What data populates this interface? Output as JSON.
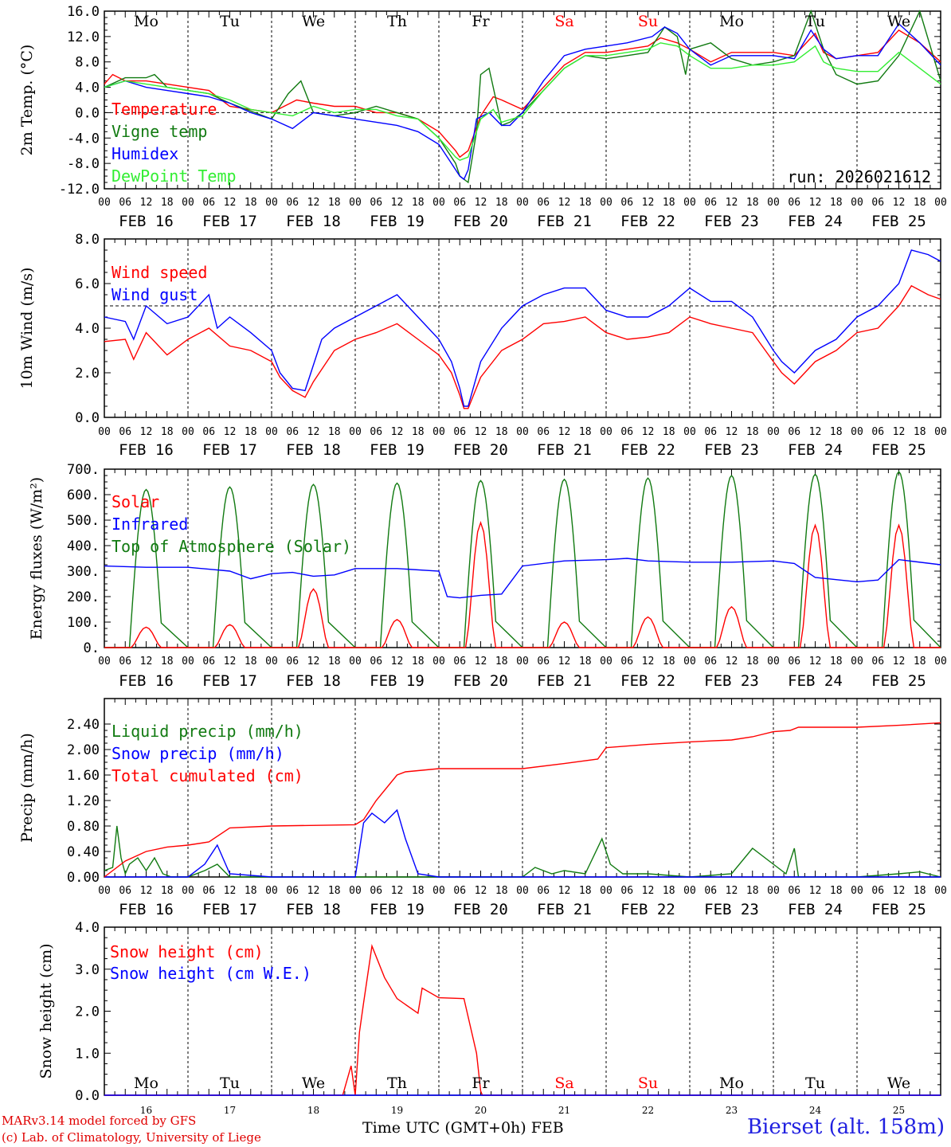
{
  "colors": {
    "red": "#ff0000",
    "darkgreen": "#117a11",
    "blue": "#0000ff",
    "lightgreen": "#33ee33",
    "axis": "#000000"
  },
  "days": [
    "Mo",
    "Tu",
    "We",
    "Th",
    "Fr",
    "Sa",
    "Su",
    "Mo",
    "Tu",
    "We"
  ],
  "weekend_days": [
    5,
    6
  ],
  "dates": [
    "FEB 16",
    "FEB 17",
    "FEB 18",
    "FEB 19",
    "FEB 20",
    "FEB 21",
    "FEB 22",
    "FEB 23",
    "FEB 24",
    "FEB 25"
  ],
  "day_numbers": [
    "16",
    "17",
    "18",
    "19",
    "20",
    "21",
    "22",
    "23",
    "24",
    "25"
  ],
  "hour_labels": [
    "00",
    "06",
    "12",
    "18"
  ],
  "end_hour_label": "00",
  "footer": {
    "model": "MARv3.14 model forced by GFS",
    "credit": "(c) Lab. of Climatology, University of Liege",
    "time_axis": "Time UTC (GMT+0h) FEB",
    "station": "Bierset (alt. 158m)"
  },
  "chart_data": [
    {
      "type": "line",
      "id": "temp",
      "ylabel": "2m Temp. (°C)",
      "ylim": [
        -12,
        16
      ],
      "yticks": [
        "16.0",
        "12.0",
        "8.0",
        "4.0",
        "0.0",
        "-4.0",
        "-8.0",
        "-12.0"
      ],
      "ytick_values": [
        16,
        12,
        8,
        4,
        0,
        -4,
        -8,
        -12
      ],
      "ref_line": 0,
      "xrange_days": [
        0,
        10
      ],
      "annotation": "run: 2026021612",
      "series": [
        {
          "name": "Temperature",
          "color": "red",
          "x": [
            0,
            0.1,
            0.25,
            0.5,
            0.75,
            1,
            1.25,
            1.4,
            1.5,
            1.75,
            2,
            2.3,
            2.5,
            2.75,
            3,
            3.25,
            3.5,
            3.75,
            4,
            4.2,
            4.25,
            4.35,
            4.5,
            4.65,
            4.75,
            5,
            5.25,
            5.5,
            5.75,
            6,
            6.25,
            6.5,
            6.65,
            6.85,
            7,
            7.25,
            7.5,
            7.75,
            8,
            8.25,
            8.5,
            8.6,
            8.75,
            9,
            9.25,
            9.5,
            9.75,
            10
          ],
          "y": [
            4.5,
            6,
            5,
            5,
            4.5,
            4,
            3.5,
            2,
            1,
            0.5,
            0,
            2,
            1.5,
            1,
            1,
            0,
            0,
            -1,
            -3,
            -6,
            -7,
            -6,
            -0.5,
            2.5,
            2,
            0.5,
            4,
            7.5,
            9.5,
            9.5,
            10,
            10.5,
            11.8,
            11,
            10,
            8,
            9.5,
            9.5,
            9.5,
            9,
            12.5,
            9.5,
            8.5,
            9,
            9.5,
            13,
            11,
            8
          ]
        },
        {
          "name": "Vigne temp",
          "color": "darkgreen",
          "x": [
            0,
            0.25,
            0.5,
            0.6,
            0.75,
            1,
            1.25,
            1.5,
            1.8,
            2,
            2.2,
            2.35,
            2.5,
            2.75,
            3,
            3.25,
            3.5,
            3.75,
            4,
            4.2,
            4.25,
            4.35,
            4.45,
            4.5,
            4.6,
            4.75,
            4.85,
            5,
            5.25,
            5.5,
            5.75,
            6,
            6.25,
            6.5,
            6.7,
            6.85,
            6.95,
            7,
            7.25,
            7.5,
            7.75,
            8,
            8.25,
            8.45,
            8.6,
            8.75,
            9,
            9.25,
            9.5,
            9.75,
            10
          ],
          "y": [
            4,
            5.5,
            5.5,
            6,
            4,
            3.5,
            3,
            1.5,
            0,
            -1,
            3,
            5,
            0,
            -0.5,
            0,
            1,
            0,
            -1,
            -4,
            -8,
            -10,
            -11,
            -3,
            6,
            7,
            -2,
            -1.5,
            0,
            3.5,
            7,
            9,
            8.5,
            9,
            9.5,
            13.5,
            12,
            6,
            10,
            11,
            8.5,
            7.5,
            8,
            9,
            16,
            10,
            6,
            4.5,
            5,
            9,
            16,
            5
          ]
        },
        {
          "name": "Humidex",
          "color": "blue",
          "x": [
            0,
            0.25,
            0.5,
            0.75,
            1,
            1.25,
            1.5,
            1.75,
            2,
            2.25,
            2.5,
            2.75,
            3,
            3.25,
            3.5,
            3.75,
            4,
            4.15,
            4.25,
            4.3,
            4.35,
            4.45,
            4.6,
            4.75,
            4.85,
            5,
            5.25,
            5.5,
            5.75,
            6,
            6.25,
            6.55,
            6.7,
            6.85,
            7,
            7.25,
            7.5,
            7.75,
            8,
            8.25,
            8.45,
            8.6,
            8.75,
            9,
            9.25,
            9.5,
            9.75,
            10
          ],
          "y": [
            4,
            5,
            4,
            3.5,
            3,
            2.5,
            1.5,
            0,
            -1,
            -2.5,
            0,
            -0.5,
            -1,
            -1.5,
            -2,
            -3,
            -5,
            -8,
            -10,
            -10.5,
            -9,
            -1,
            0,
            -2,
            -2,
            0,
            5,
            9,
            10,
            10.5,
            11,
            12,
            13.5,
            12.5,
            10,
            7.5,
            9,
            9,
            9,
            8.5,
            13,
            10,
            8.5,
            9,
            9,
            14,
            11,
            7.5
          ]
        },
        {
          "name": "DewPoint Temp",
          "color": "lightgreen",
          "x": [
            0,
            0.25,
            0.5,
            0.75,
            1,
            1.25,
            1.5,
            1.75,
            2,
            2.25,
            2.5,
            2.75,
            3,
            3.25,
            3.5,
            3.75,
            4,
            4.2,
            4.25,
            4.35,
            4.5,
            4.65,
            4.75,
            5,
            5.25,
            5.5,
            5.75,
            6,
            6.25,
            6.5,
            6.65,
            6.85,
            7,
            7.25,
            7.5,
            7.75,
            8,
            8.25,
            8.5,
            8.6,
            8.75,
            9,
            9.25,
            9.5,
            9.75,
            10
          ],
          "y": [
            4,
            5,
            4.5,
            4,
            3.5,
            3,
            2,
            0.5,
            0,
            -0.5,
            1,
            0,
            0.5,
            0.5,
            -0.5,
            -1,
            -4,
            -7,
            -7.5,
            -7,
            -1,
            0.5,
            -1.5,
            -0.5,
            3.5,
            7,
            9,
            9,
            9.5,
            10,
            11,
            10.5,
            9,
            7,
            7,
            7.5,
            7.5,
            8,
            10.5,
            8,
            7,
            6.5,
            6.5,
            9.5,
            7,
            4.5
          ]
        }
      ]
    },
    {
      "type": "line",
      "id": "wind",
      "ylabel": "10m Wind (m/s)",
      "ylim": [
        0,
        8
      ],
      "yticks": [
        "8.0",
        "6.0",
        "4.0",
        "2.0",
        "0.0"
      ],
      "ytick_values": [
        8,
        6,
        4,
        2,
        0
      ],
      "ref_line": 5,
      "xrange_days": [
        0,
        10
      ],
      "series": [
        {
          "name": "Wind speed",
          "color": "red",
          "x": [
            0,
            0.25,
            0.35,
            0.5,
            0.75,
            1,
            1.25,
            1.5,
            1.75,
            2,
            2.1,
            2.25,
            2.4,
            2.5,
            2.75,
            3,
            3.25,
            3.5,
            3.75,
            4,
            4.15,
            4.25,
            4.3,
            4.35,
            4.5,
            4.75,
            5,
            5.25,
            5.5,
            5.75,
            6,
            6.25,
            6.5,
            6.75,
            7,
            7.25,
            7.5,
            7.75,
            8,
            8.1,
            8.25,
            8.5,
            8.75,
            9,
            9.25,
            9.5,
            9.65,
            9.85,
            10
          ],
          "y": [
            3.4,
            3.5,
            2.6,
            3.8,
            2.8,
            3.5,
            4,
            3.2,
            3,
            2.5,
            1.8,
            1.2,
            0.9,
            1.6,
            3,
            3.5,
            3.8,
            4.2,
            3.5,
            2.8,
            2,
            1,
            0.4,
            0.4,
            1.8,
            3,
            3.5,
            4.2,
            4.3,
            4.5,
            3.8,
            3.5,
            3.6,
            3.8,
            4.5,
            4.2,
            4,
            3.8,
            2.5,
            2,
            1.5,
            2.5,
            3,
            3.8,
            4,
            5,
            5.9,
            5.5,
            5.3
          ]
        },
        {
          "name": "Wind gust",
          "color": "blue",
          "x": [
            0,
            0.25,
            0.35,
            0.5,
            0.75,
            1,
            1.25,
            1.35,
            1.5,
            1.75,
            2,
            2.1,
            2.25,
            2.4,
            2.6,
            2.75,
            3,
            3.25,
            3.5,
            3.75,
            4,
            4.15,
            4.25,
            4.3,
            4.35,
            4.5,
            4.75,
            5,
            5.25,
            5.5,
            5.75,
            6,
            6.25,
            6.5,
            6.75,
            7,
            7.25,
            7.5,
            7.75,
            8,
            8.1,
            8.25,
            8.5,
            8.75,
            9,
            9.25,
            9.5,
            9.65,
            9.85,
            10
          ],
          "y": [
            4.5,
            4.3,
            3.5,
            5,
            4.2,
            4.5,
            5.5,
            4,
            4.5,
            3.8,
            3,
            2,
            1.3,
            1.2,
            3.5,
            4,
            4.5,
            5,
            5.5,
            4.5,
            3.5,
            2.5,
            1.3,
            0.5,
            0.5,
            2.5,
            4,
            5,
            5.5,
            5.8,
            5.8,
            4.8,
            4.5,
            4.5,
            5,
            5.8,
            5.2,
            5.2,
            4.5,
            3,
            2.5,
            2,
            3,
            3.5,
            4.5,
            5,
            6,
            7.5,
            7.3,
            7
          ]
        }
      ]
    },
    {
      "type": "line",
      "id": "energy",
      "ylabel": "Energy fluxes (W/m²)",
      "ylim": [
        0,
        700
      ],
      "yticks": [
        "700.",
        "600.",
        "500.",
        "400.",
        "300.",
        "200.",
        "100.",
        "0."
      ],
      "ytick_values": [
        700,
        600,
        500,
        400,
        300,
        200,
        100,
        0
      ],
      "xrange_days": [
        0,
        10
      ],
      "toa_peaks": [
        620,
        630,
        640,
        645,
        655,
        660,
        665,
        675,
        680,
        690
      ],
      "solar_peaks": [
        80,
        90,
        230,
        110,
        490,
        100,
        120,
        160,
        480,
        480
      ],
      "series": [
        {
          "name": "Solar",
          "color": "red"
        },
        {
          "name": "Infrared",
          "color": "blue",
          "x": [
            0,
            0.5,
            1,
            1.5,
            1.75,
            2,
            2.25,
            2.5,
            2.75,
            3,
            3.5,
            4,
            4.1,
            4.25,
            4.5,
            4.75,
            5,
            5.5,
            6,
            6.25,
            6.5,
            7,
            7.5,
            8,
            8.25,
            8.5,
            9,
            9.25,
            9.5,
            10
          ],
          "y": [
            320,
            315,
            315,
            300,
            270,
            290,
            295,
            280,
            285,
            310,
            310,
            300,
            200,
            195,
            205,
            210,
            320,
            340,
            345,
            350,
            340,
            335,
            335,
            340,
            330,
            275,
            258,
            265,
            345,
            325
          ]
        },
        {
          "name": "Top of Atmosphere (Solar)",
          "color": "darkgreen"
        }
      ]
    },
    {
      "type": "line",
      "id": "precip",
      "ylabel": "Precip (mm/h)",
      "ylim": [
        0,
        2.8
      ],
      "yticks": [
        "2.40",
        "2.00",
        "1.60",
        "1.20",
        "0.80",
        "0.40",
        "0.00"
      ],
      "ytick_values": [
        2.4,
        2.0,
        1.6,
        1.2,
        0.8,
        0.4,
        0.0
      ],
      "xrange_days": [
        0,
        10
      ],
      "series": [
        {
          "name": "Liquid precip (mm/h)",
          "color": "darkgreen",
          "x": [
            0,
            0.1,
            0.15,
            0.2,
            0.25,
            0.3,
            0.4,
            0.5,
            0.6,
            0.7,
            0.8,
            0.9,
            1,
            1.2,
            1.35,
            1.5,
            2,
            3,
            4,
            5,
            5.15,
            5.35,
            5.5,
            5.75,
            5.95,
            6.05,
            6.2,
            6.5,
            7,
            7.5,
            7.75,
            8,
            8.15,
            8.25,
            8.3,
            8.5,
            9,
            9.5,
            9.75,
            10
          ],
          "y": [
            0.1,
            0.15,
            0.8,
            0.3,
            0.05,
            0.2,
            0.3,
            0.1,
            0.3,
            0.05,
            0,
            0,
            0,
            0.1,
            0.2,
            0,
            0,
            0,
            0,
            0,
            0.15,
            0.05,
            0.1,
            0.05,
            0.6,
            0.2,
            0.05,
            0.05,
            0,
            0.05,
            0.45,
            0.2,
            0.05,
            0.45,
            0,
            0,
            0,
            0.05,
            0.08,
            0
          ]
        },
        {
          "name": "Snow precip (mm/h)",
          "color": "blue",
          "x": [
            0,
            0.5,
            1,
            1.2,
            1.35,
            1.5,
            2,
            3,
            3.1,
            3.2,
            3.35,
            3.5,
            3.6,
            3.75,
            4,
            4.5,
            5,
            10
          ],
          "y": [
            0,
            0,
            0,
            0.2,
            0.5,
            0.05,
            0,
            0,
            0.85,
            1,
            0.85,
            1.05,
            0.6,
            0.05,
            0,
            0,
            0,
            0
          ]
        },
        {
          "name": "Total cumulated (cm)",
          "color": "red",
          "x": [
            0,
            0.25,
            0.5,
            0.75,
            1,
            1.25,
            1.5,
            2,
            3,
            3.1,
            3.25,
            3.5,
            3.6,
            4,
            5,
            5.5,
            5.9,
            6,
            6.5,
            7,
            7.5,
            7.75,
            8,
            8.2,
            8.3,
            9,
            9.5,
            10
          ],
          "y": [
            0,
            0.25,
            0.4,
            0.47,
            0.5,
            0.55,
            0.77,
            0.8,
            0.82,
            0.9,
            1.2,
            1.6,
            1.65,
            1.7,
            1.7,
            1.78,
            1.85,
            2.03,
            2.08,
            2.12,
            2.15,
            2.2,
            2.28,
            2.3,
            2.35,
            2.35,
            2.38,
            2.42
          ]
        }
      ]
    },
    {
      "type": "line",
      "id": "snow",
      "ylabel": "Snow height (cm)",
      "ylim": [
        0,
        4
      ],
      "yticks": [
        "4.0",
        "3.0",
        "2.0",
        "1.0",
        "0.0"
      ],
      "ytick_values": [
        4,
        3,
        2,
        1,
        0
      ],
      "xrange_days": [
        0,
        10
      ],
      "series": [
        {
          "name": "Snow height (cm)",
          "color": "red",
          "x": [
            0,
            2.85,
            2.95,
            3.0,
            3.05,
            3.1,
            3.2,
            3.35,
            3.5,
            3.75,
            3.8,
            4.0,
            4.3,
            4.45,
            4.5,
            4.52,
            10
          ],
          "y": [
            0,
            0,
            0.7,
            0,
            1.5,
            2.2,
            3.55,
            2.8,
            2.3,
            1.95,
            2.55,
            2.32,
            2.3,
            1,
            0.1,
            0,
            0
          ]
        },
        {
          "name": "Snow height (cm W.E.)",
          "color": "blue",
          "x": [
            0,
            10
          ],
          "y": [
            0,
            0
          ]
        }
      ]
    }
  ]
}
